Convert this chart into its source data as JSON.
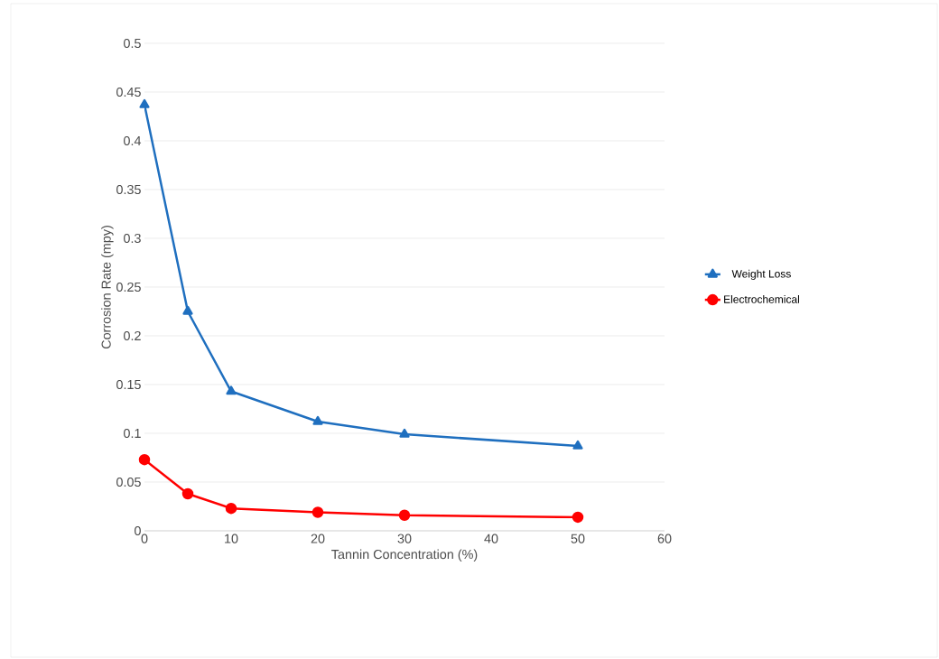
{
  "chart_data": {
    "type": "line",
    "xlabel": "Tannin Concentration (%)",
    "ylabel": "Corrosion Rate (mpy)",
    "x": [
      0,
      5,
      10,
      20,
      30,
      50
    ],
    "series": [
      {
        "name": "Weight Loss",
        "color": "#1f6fbf",
        "marker": "triangle",
        "values": [
          0.437,
          0.225,
          0.143,
          0.112,
          0.099,
          0.087
        ]
      },
      {
        "name": "Electrochemical",
        "color": "#ff0000",
        "marker": "circle",
        "values": [
          0.073,
          0.038,
          0.023,
          0.019,
          0.016,
          0.014
        ]
      }
    ],
    "xlim": [
      0,
      60
    ],
    "xticks": [
      0,
      10,
      20,
      30,
      40,
      50,
      60
    ],
    "ylim": [
      0,
      0.5
    ],
    "yticks": [
      0,
      0.05,
      0.1,
      0.15,
      0.2,
      0.25,
      0.3,
      0.35,
      0.4,
      0.45,
      0.5
    ],
    "grid": "y",
    "legend": "right",
    "line_style": "solid"
  }
}
